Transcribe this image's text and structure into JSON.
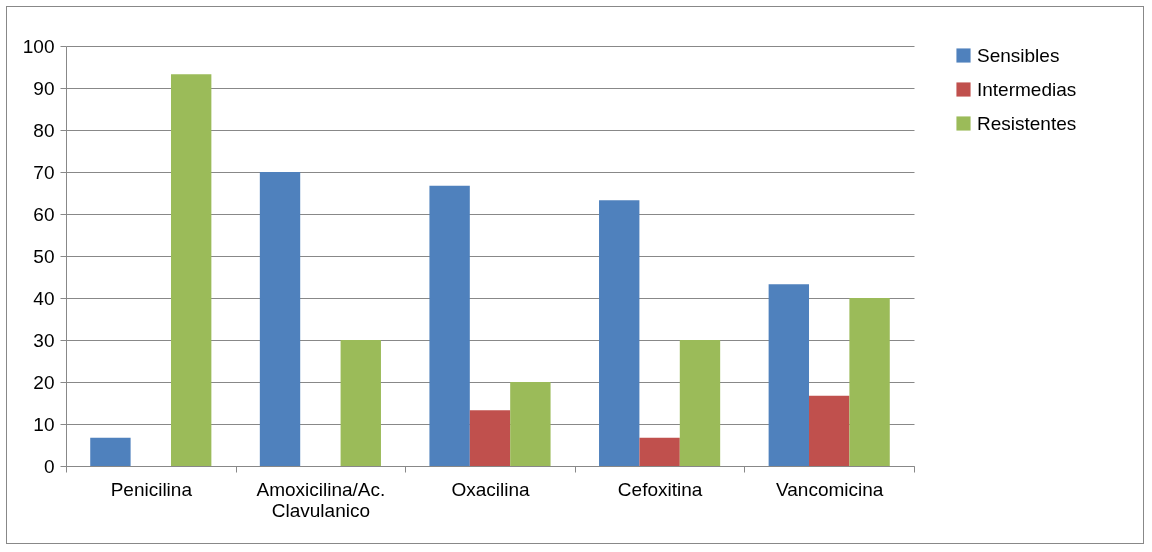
{
  "chart_data": {
    "type": "bar",
    "categories": [
      "Penicilina",
      "Amoxicilina/Ac. Clavulanico",
      "Oxacilina",
      "Cefoxitina",
      "Vancomicina"
    ],
    "series": [
      {
        "name": "Sensibles",
        "color": "#4f81bd",
        "values": [
          6.7,
          70,
          66.7,
          63.3,
          43.3
        ]
      },
      {
        "name": "Intermedias",
        "color": "#c0504d",
        "values": [
          0,
          0,
          13.3,
          6.7,
          16.7
        ]
      },
      {
        "name": "Resistentes",
        "color": "#9bbb59",
        "values": [
          93.3,
          30,
          20,
          30,
          40
        ]
      }
    ],
    "ylim": [
      0,
      100
    ],
    "yticks": [
      0,
      10,
      20,
      30,
      40,
      50,
      60,
      70,
      80,
      90,
      100
    ],
    "grid": "y",
    "legend": "right"
  }
}
